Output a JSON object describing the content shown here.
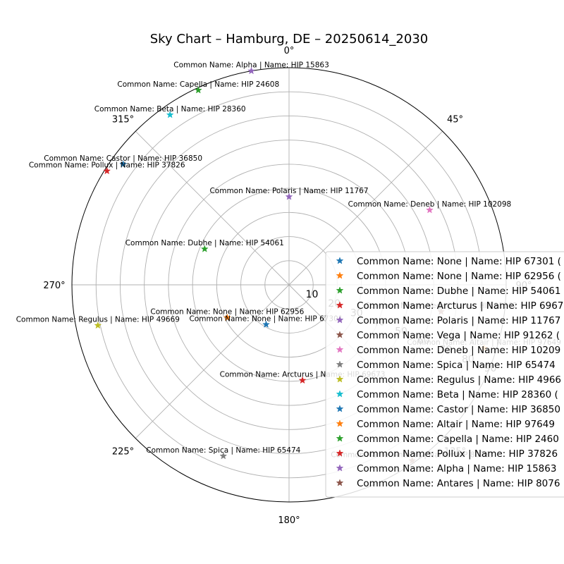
{
  "chart_data": {
    "type": "scatter",
    "projection": "polar",
    "title": "Sky Chart – Hamburg, DE – 20250614_2030",
    "theta_direction": "clockwise",
    "theta_zero": "top",
    "angle_ticks": [
      "0°",
      "45°",
      "90°",
      "135°",
      "180°",
      "225°",
      "270°",
      "315°"
    ],
    "radial_ticks": [
      "10",
      "20",
      "30",
      "40",
      "50",
      "60",
      "70",
      "80",
      "90"
    ],
    "rlim": [
      0,
      90
    ],
    "grid": true,
    "marker": "star",
    "legend_placement": "lower-right",
    "series": [
      {
        "name": "Common Name: None | Name: HIP 67301 (",
        "label": "Common Name: None | Name: HIP 67301",
        "az": 210,
        "alt": 71,
        "color": "#1f77b4"
      },
      {
        "name": "Common Name: None | Name: HIP 62956 (",
        "label": "Common Name: None | Name: HIP 62956",
        "az": 242,
        "alt": 61,
        "color": "#ff7f0e"
      },
      {
        "name": "Common Name: Dubhe | Name: HIP 54061",
        "label": "Common Name: Dubhe | Name: HIP 54061",
        "az": 293,
        "alt": 52,
        "color": "#2ca02c"
      },
      {
        "name": "Common Name: Arcturus | Name: HIP 6967",
        "label": "Common Name: Arcturus | Name: HIP 69673",
        "az": 172,
        "alt": 50,
        "color": "#d62728"
      },
      {
        "name": "Common Name: Polaris | Name: HIP 11767",
        "label": "Common Name: Polaris | Name: HIP 11767",
        "az": 0,
        "alt": 53.5,
        "color": "#9467bd"
      },
      {
        "name": "Common Name: Vega | Name: HIP 91262 (",
        "label": "Common Name: Vega | Name: HIP 91262",
        "az": 100,
        "alt": 26,
        "color": "#8c564b"
      },
      {
        "name": "Common Name: Deneb | Name: HIP 10209",
        "label": "Common Name: Deneb | Name: HIP 102098",
        "az": 62,
        "alt": 24,
        "color": "#e377c2"
      },
      {
        "name": "Common Name: Spica | Name: HIP 65474",
        "label": "Common Name: Spica | Name: HIP 65474",
        "az": 201,
        "alt": 14,
        "color": "#7f7f7f"
      },
      {
        "name": "Common Name: Regulus | Name: HIP 4966",
        "label": "Common Name: Regulus | Name: HIP 49669",
        "az": 258,
        "alt": 9,
        "color": "#bcbd22"
      },
      {
        "name": "Common Name: Beta | Name: HIP 28360 (",
        "label": "Common Name: Beta | Name: HIP 28360",
        "az": 325,
        "alt": 4,
        "color": "#17becf"
      },
      {
        "name": "Common Name: Castor | Name: HIP 36850",
        "label": "Common Name: Castor | Name: HIP 36850",
        "az": 306,
        "alt": 5,
        "color": "#1f77b4"
      },
      {
        "name": "Common Name: Altair | Name: HIP 97649",
        "label": "Common Name: Altair | Name: HIP 97649",
        "az": 108,
        "alt": 5,
        "color": "#ff7f0e"
      },
      {
        "name": "Common Name: Capella | Name: HIP 2460",
        "label": "Common Name: Capella | Name: HIP 24608",
        "az": 335,
        "alt": 1,
        "color": "#2ca02c"
      },
      {
        "name": "Common Name: Pollux | Name: HIP 37826",
        "label": "Common Name: Pollux | Name: HIP 37826",
        "az": 302,
        "alt": 1,
        "color": "#d62728"
      },
      {
        "name": "Common Name: Alpha | Name: HIP 15863",
        "label": "Common Name: Alpha | Name: HIP 15863",
        "az": 350,
        "alt": 0,
        "color": "#9467bd"
      },
      {
        "name": "Common Name: Antares | Name: HIP 8076",
        "label": "Common Name: Antares | Name: HIP 80763",
        "az": 145,
        "alt": 1,
        "color": "#8c564b"
      }
    ]
  }
}
